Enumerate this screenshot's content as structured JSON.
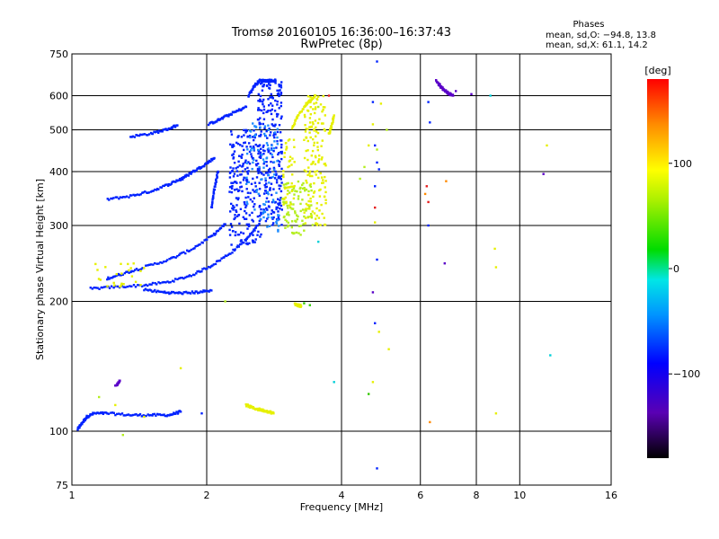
{
  "chart_data": {
    "type": "scatter",
    "title": "Tromsø 20160105 16:36:00–16:37:43",
    "subtitle": "RwPretec (8p)",
    "xlabel": "Frequency [MHz]",
    "ylabel": "Stationary phase Virtual Height [km]",
    "x_scale": "log",
    "y_scale": "log",
    "xlim": [
      1,
      16
    ],
    "ylim": [
      75,
      750
    ],
    "x_ticks": [
      "1",
      "2",
      "4",
      "6",
      "8",
      "10",
      "16"
    ],
    "x_tick_values": [
      1,
      2,
      4,
      6,
      8,
      10,
      16
    ],
    "y_ticks": [
      "75",
      "100",
      "200",
      "300",
      "400",
      "500",
      "600",
      "750"
    ],
    "y_tick_values": [
      75,
      100,
      200,
      300,
      400,
      500,
      600,
      750
    ],
    "grid": true,
    "phases_info": {
      "heading": "Phases",
      "line1": "mean, sd,O: −94.8, 13.8",
      "line2": "mean, sd,X:  61.1, 14.2"
    },
    "colorbar": {
      "unit_label": "[deg]",
      "range": [
        -180,
        180
      ],
      "tick_labels": [
        "100",
        "0",
        "−100"
      ],
      "tick_values": [
        100,
        0,
        -100
      ]
    },
    "colors": {
      "violet": "#5a00c8",
      "blue": "#0022ff",
      "lightblue": "#1e8cff",
      "yellow": "#e6f000",
      "ygreen": "#b4ee1e",
      "green": "#32c800",
      "orange": "#ff8a00",
      "red": "#e61e1e",
      "cyan": "#00cfd8"
    },
    "series": [
      {
        "kind": "curve",
        "color": "blue",
        "x": [
          1.03,
          1.05,
          1.08,
          1.12,
          1.2,
          1.35,
          1.5,
          1.65,
          1.75
        ],
        "y": [
          101,
          104,
          108,
          110,
          110,
          109,
          109,
          109,
          111
        ]
      },
      {
        "kind": "curve",
        "color": "blue",
        "x": [
          1.1,
          1.25,
          1.45,
          1.65,
          1.85,
          2.05,
          2.25,
          2.45,
          2.6
        ],
        "y": [
          214,
          216,
          218,
          222,
          230,
          242,
          258,
          278,
          300
        ]
      },
      {
        "kind": "curve",
        "color": "blue",
        "x": [
          1.2,
          1.3,
          1.45,
          1.65,
          1.85,
          2.05,
          2.2
        ],
        "y": [
          226,
          232,
          240,
          250,
          264,
          283,
          302
        ]
      },
      {
        "kind": "curve",
        "color": "blue",
        "x": [
          1.2,
          1.35,
          1.5,
          1.65,
          1.78
        ],
        "y": [
          345,
          351,
          360,
          374,
          388
        ]
      },
      {
        "kind": "curve",
        "color": "blue",
        "x": [
          1.75,
          1.85,
          1.98,
          2.08
        ],
        "y": [
          383,
          398,
          415,
          430
        ]
      },
      {
        "kind": "curve",
        "color": "blue",
        "x": [
          1.35,
          1.5,
          1.62,
          1.72
        ],
        "y": [
          482,
          490,
          500,
          512
        ]
      },
      {
        "kind": "curve",
        "color": "blue",
        "x": [
          2.02,
          2.15,
          2.3,
          2.45
        ],
        "y": [
          515,
          530,
          548,
          565
        ]
      },
      {
        "kind": "curve",
        "color": "blue",
        "x": [
          1.45,
          1.6,
          1.75,
          1.9,
          2.05
        ],
        "y": [
          213,
          210,
          209,
          210,
          212
        ]
      },
      {
        "kind": "curve",
        "color": "blue",
        "x": [
          2.05,
          2.08,
          2.12
        ],
        "y": [
          330,
          365,
          400
        ]
      },
      {
        "kind": "curve",
        "color": "blue",
        "x": [
          2.48,
          2.55,
          2.62,
          2.7,
          2.78,
          2.85
        ],
        "y": [
          600,
          630,
          650,
          650,
          650,
          650
        ]
      },
      {
        "kind": "curve",
        "color": "yellow",
        "x": [
          2.45,
          2.55,
          2.65,
          2.75,
          2.82
        ],
        "y": [
          115,
          113,
          112,
          111,
          110
        ]
      },
      {
        "kind": "curve",
        "color": "yellow",
        "x": [
          3.1,
          3.2,
          3.35,
          3.5
        ],
        "y": [
          505,
          540,
          575,
          600
        ]
      },
      {
        "kind": "curve",
        "color": "yellow",
        "x": [
          3.75,
          3.8,
          3.85
        ],
        "y": [
          490,
          510,
          540
        ]
      },
      {
        "kind": "curve",
        "color": "yellow",
        "x": [
          3.15,
          3.2,
          3.25
        ],
        "y": [
          197,
          196,
          195
        ]
      },
      {
        "kind": "curve",
        "color": "violet",
        "x": [
          6.5,
          6.7,
          6.9,
          7.1
        ],
        "y": [
          650,
          625,
          610,
          600
        ]
      },
      {
        "kind": "curve",
        "color": "violet",
        "x": [
          1.25,
          1.28
        ],
        "y": [
          127,
          131
        ]
      },
      {
        "kind": "cloud",
        "color": "blue",
        "x_range": [
          2.25,
          2.65
        ],
        "y_range": [
          270,
          500
        ],
        "count": 220
      },
      {
        "kind": "cloud",
        "color": "blue",
        "x_range": [
          2.6,
          2.95
        ],
        "y_range": [
          300,
          650
        ],
        "count": 240
      },
      {
        "kind": "cloud",
        "color": "lightblue",
        "x_range": [
          2.45,
          2.9
        ],
        "y_range": [
          290,
          520
        ],
        "count": 90
      },
      {
        "kind": "cloud",
        "color": "yellow",
        "x_range": [
          3.3,
          3.7
        ],
        "y_range": [
          300,
          600
        ],
        "count": 160
      },
      {
        "kind": "cloud",
        "color": "ygreen",
        "x_range": [
          2.95,
          3.45
        ],
        "y_range": [
          285,
          380
        ],
        "count": 90
      },
      {
        "kind": "cloud",
        "color": "yellow",
        "x_range": [
          2.95,
          3.15
        ],
        "y_range": [
          330,
          480
        ],
        "count": 40
      },
      {
        "kind": "cloud",
        "color": "yellow",
        "x_range": [
          1.1,
          1.45
        ],
        "y_range": [
          215,
          245
        ],
        "count": 24
      },
      {
        "kind": "scatter",
        "color": "blue",
        "x": [
          4.8,
          4.7,
          4.75,
          6.25,
          6.3,
          4.8,
          4.85,
          4.75,
          6.25,
          4.8,
          4.75,
          4.8,
          1.95
        ],
        "y": [
          720,
          580,
          460,
          580,
          520,
          420,
          405,
          370,
          300,
          250,
          178,
          82,
          110
        ]
      },
      {
        "kind": "scatter",
        "color": "yellow",
        "x": [
          4.7,
          4.9,
          4.6,
          4.75,
          4.85,
          5.1,
          4.7,
          8.8,
          8.85,
          8.85,
          11.5,
          1.25,
          1.75,
          1.45
        ],
        "y": [
          515,
          575,
          460,
          305,
          170,
          155,
          130,
          265,
          240,
          110,
          460,
          115,
          140,
          108
        ]
      },
      {
        "kind": "scatter",
        "color": "ygreen",
        "x": [
          3.55,
          4.4,
          5.05,
          4.5,
          4.8,
          2.2,
          1.15,
          1.3
        ],
        "y": [
          565,
          385,
          500,
          410,
          450,
          200,
          120,
          98
        ]
      },
      {
        "kind": "scatter",
        "color": "orange",
        "x": [
          6.15,
          6.85,
          6.3
        ],
        "y": [
          355,
          380,
          105
        ]
      },
      {
        "kind": "scatter",
        "color": "red",
        "x": [
          6.2,
          6.25,
          3.75,
          4.75
        ],
        "y": [
          370,
          340,
          600,
          330
        ]
      },
      {
        "kind": "scatter",
        "color": "violet",
        "x": [
          6.8,
          7.2,
          7.8,
          11.3,
          4.7
        ],
        "y": [
          245,
          615,
          605,
          395,
          210
        ]
      },
      {
        "kind": "scatter",
        "color": "cyan",
        "x": [
          3.85,
          8.6,
          11.7,
          3.55
        ],
        "y": [
          130,
          600,
          150,
          275
        ]
      },
      {
        "kind": "scatter",
        "color": "green",
        "x": [
          4.6,
          3.3,
          3.4
        ],
        "y": [
          122,
          198,
          196
        ]
      }
    ]
  }
}
